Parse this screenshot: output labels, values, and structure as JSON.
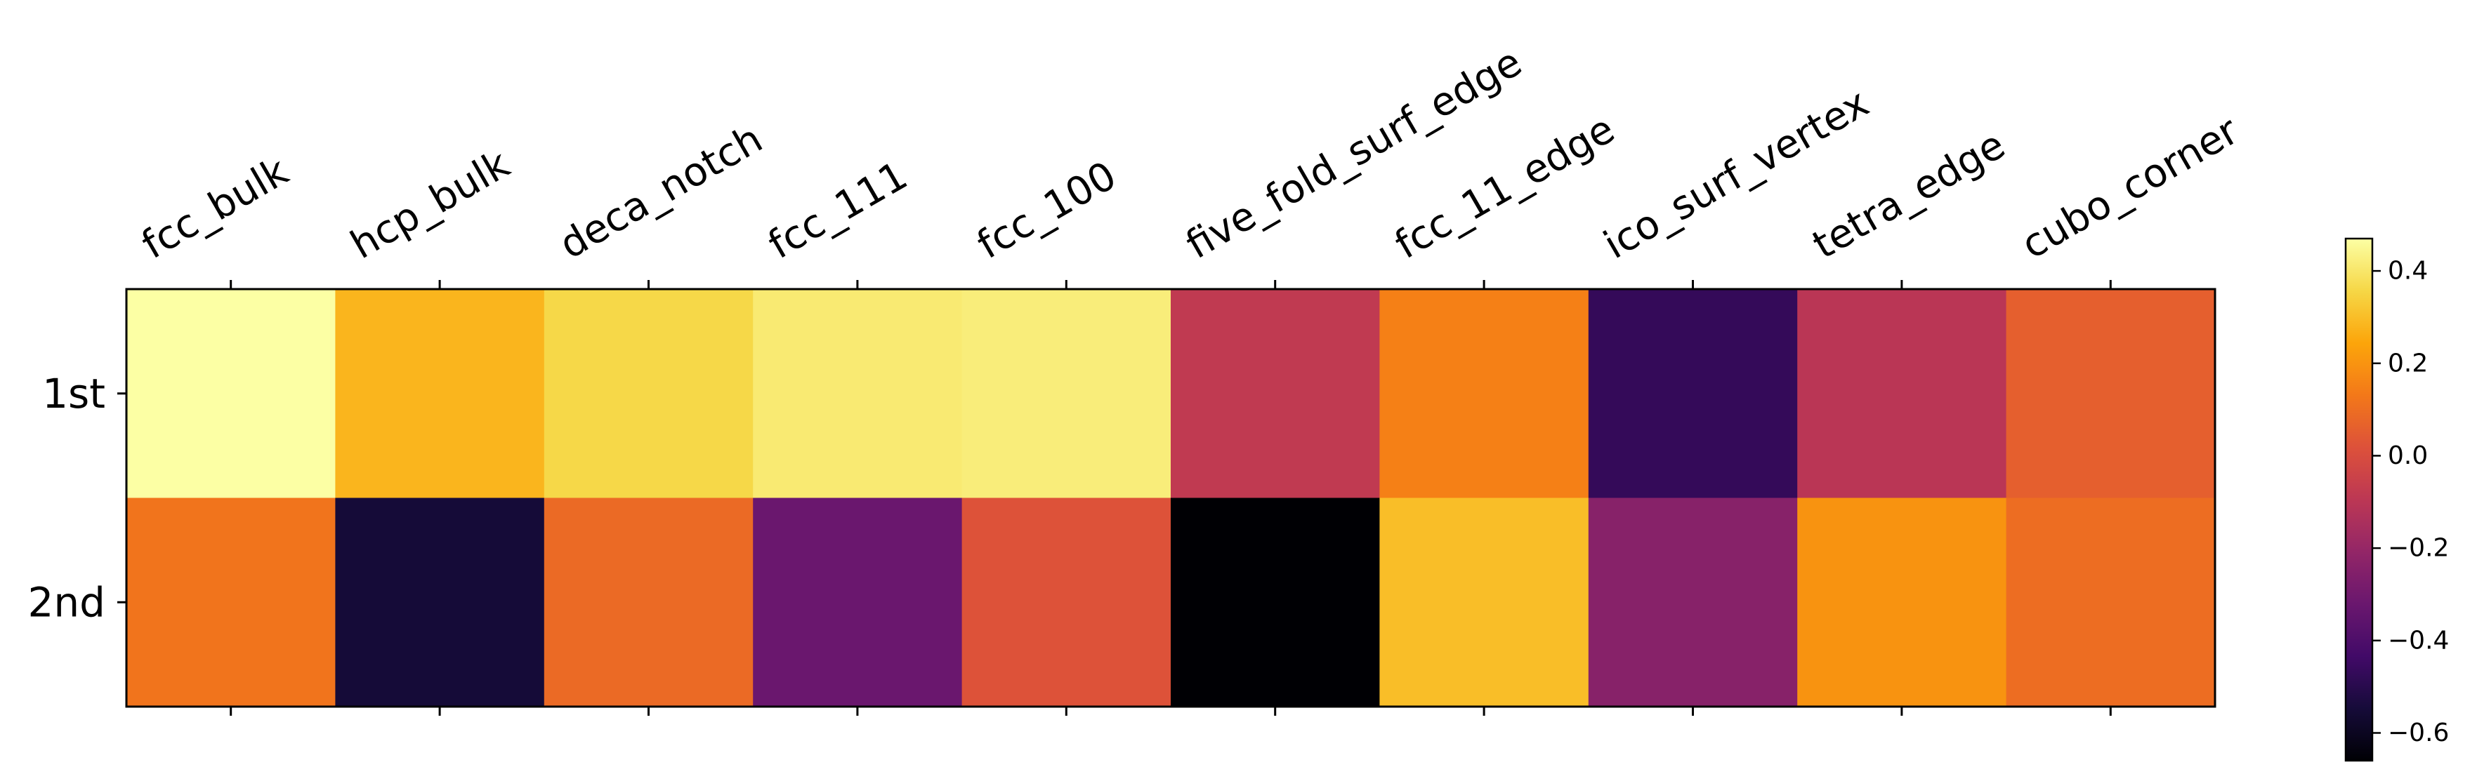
{
  "chart_data": {
    "type": "heatmap",
    "title": "",
    "xlabel": "",
    "ylabel": "",
    "columns": [
      "fcc_bulk",
      "hcp_bulk",
      "deca_notch",
      "fcc_111",
      "fcc_100",
      "five_fold_surf_edge",
      "fcc_11_edge",
      "ico_surf_vertex",
      "tetra_edge",
      "cubo_corner"
    ],
    "rows": [
      "1st",
      "2nd"
    ],
    "values": [
      [
        0.47,
        0.28,
        0.36,
        0.41,
        0.42,
        -0.08,
        0.15,
        -0.47,
        -0.1,
        0.06
      ],
      [
        0.12,
        -0.55,
        0.09,
        -0.32,
        0.02,
        -0.66,
        0.3,
        -0.24,
        0.2,
        0.1
      ]
    ],
    "colormap": "inferno",
    "vmin": -0.66,
    "vmax": 0.47,
    "colorbar": {
      "ticks": [
        0.4,
        0.2,
        0.0,
        -0.2,
        -0.4,
        -0.6
      ],
      "tick_labels": [
        "0.4",
        "0.2",
        "0.0",
        "−0.2",
        "−0.4",
        "−0.6"
      ]
    },
    "x_tick_position": "top",
    "grid": false
  }
}
